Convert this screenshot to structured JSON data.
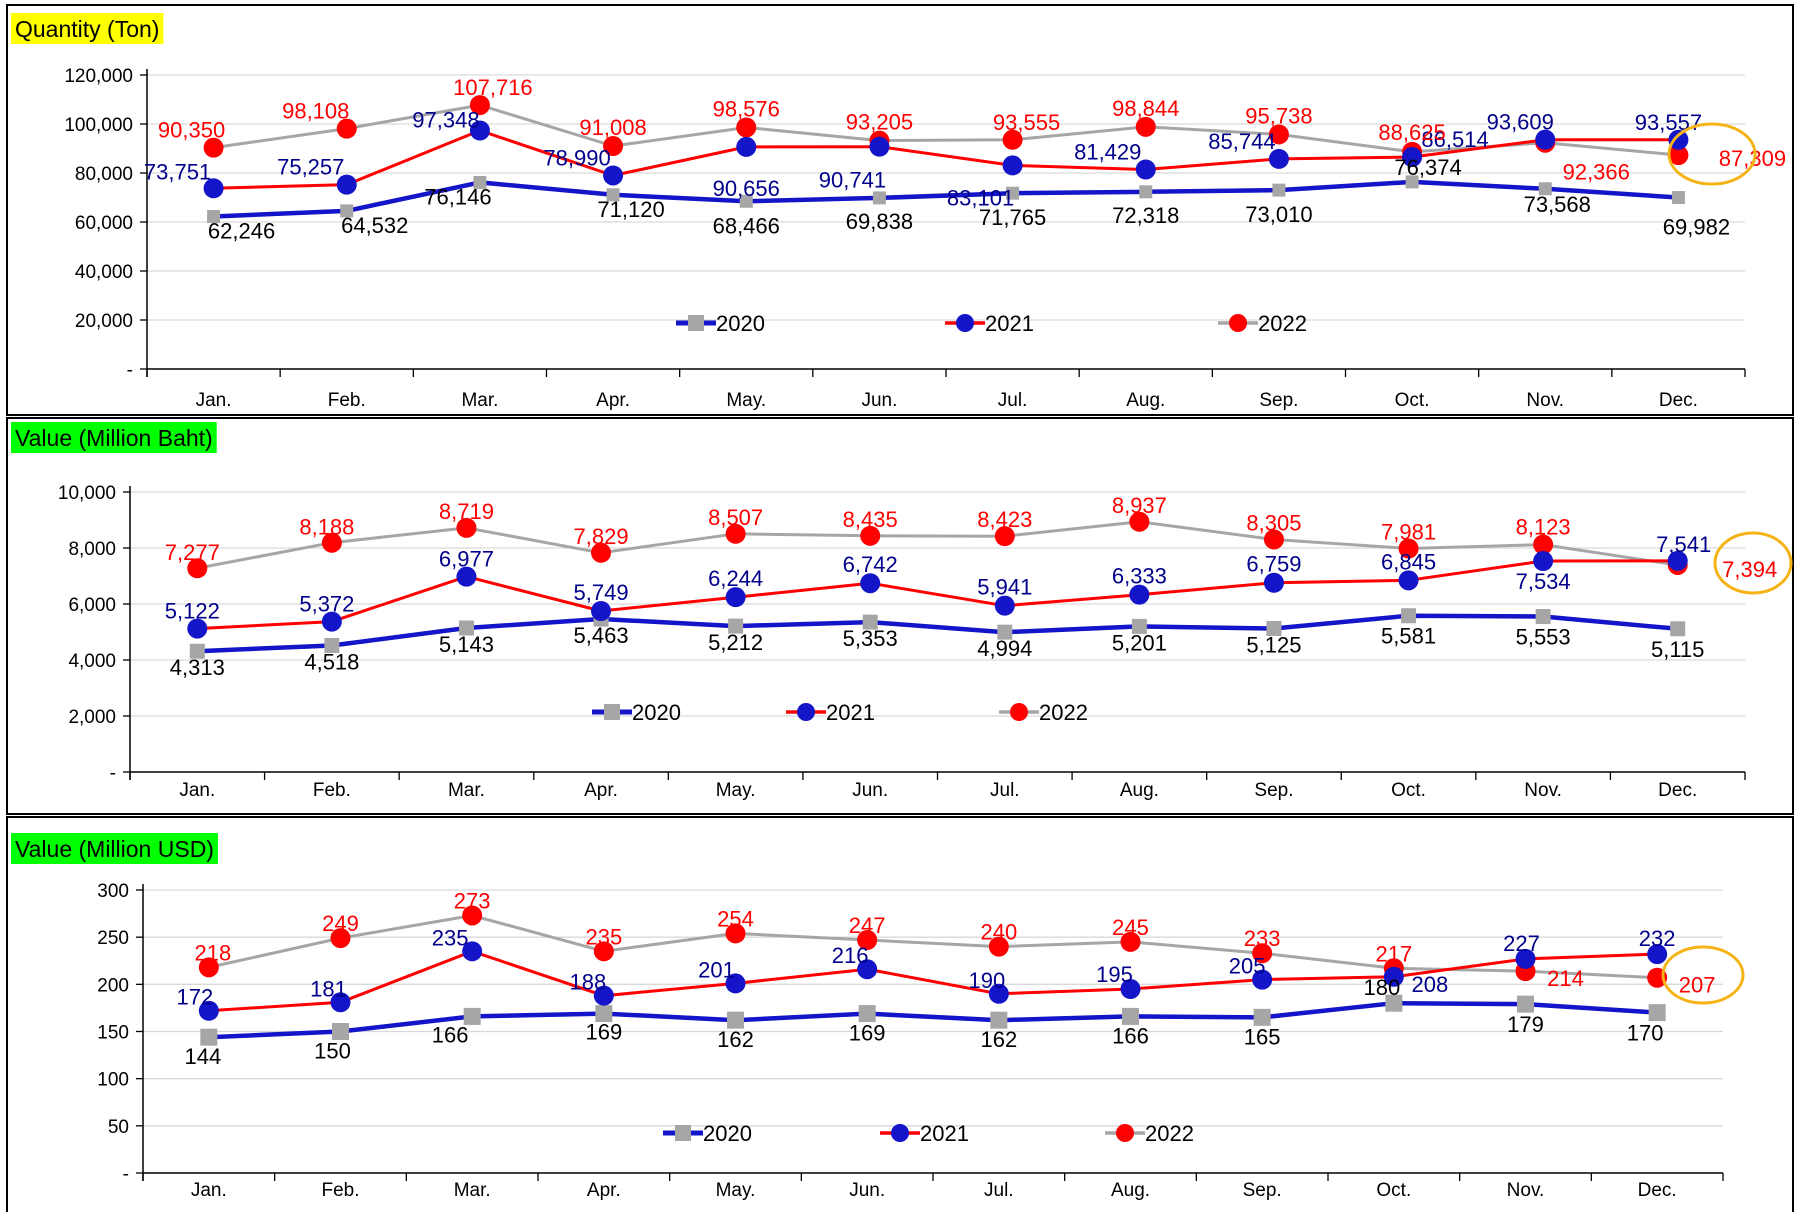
{
  "colors": {
    "series_2020": "#1414c8",
    "series_2021": "#ff0000",
    "series_2022": "#a6a6a6",
    "label_2020": "#000000",
    "label_2021": "#00008b",
    "label_2022": "#ff0000",
    "marker_2020": "#a6a6a6",
    "marker_2021": "#1414c8",
    "marker_2022": "#ff0000",
    "highlight": "#f5b316"
  },
  "chart_data": [
    {
      "type": "line",
      "title": "Quantity (Ton)",
      "title_bg": "#ffff00",
      "categories": [
        "Jan.",
        "Feb.",
        "Mar.",
        "Apr.",
        "May.",
        "Jun.",
        "Jul.",
        "Aug.",
        "Sep.",
        "Oct.",
        "Nov.",
        "Dec."
      ],
      "ylim": [
        0,
        120000
      ],
      "yticks": [
        {
          "value": 0,
          "label": "-"
        },
        {
          "value": 20000,
          "label": "20,000"
        },
        {
          "value": 40000,
          "label": "40,000"
        },
        {
          "value": 60000,
          "label": "60,000"
        },
        {
          "value": 80000,
          "label": "80,000"
        },
        {
          "value": 100000,
          "label": "100,000"
        },
        {
          "value": 120000,
          "label": "120,000"
        }
      ],
      "grid": true,
      "legend": "bottom-center",
      "series": [
        {
          "name": "2020",
          "values": [
            62246,
            64532,
            76146,
            71120,
            68466,
            69838,
            71765,
            72318,
            73010,
            76374,
            73568,
            69982
          ],
          "labels": [
            "62,246",
            "64,532",
            "76,146",
            "71,120",
            "68,466",
            "69,838",
            "71,765",
            "72,318",
            "73,010",
            "76,374",
            "73,568",
            "69,982"
          ]
        },
        {
          "name": "2021",
          "values": [
            73751,
            75257,
            97348,
            78990,
            90656,
            90741,
            83101,
            81429,
            85744,
            86514,
            93609,
            93557
          ],
          "labels": [
            "73,751",
            "75,257",
            "97,348",
            "78,990",
            "90,656",
            "90,741",
            "83,101",
            "81,429",
            "85,744",
            "86,514",
            "93,609",
            "93,557"
          ]
        },
        {
          "name": "2022",
          "values": [
            90350,
            98108,
            107716,
            91008,
            98576,
            93205,
            93555,
            98844,
            95738,
            88625,
            92366,
            87309
          ],
          "labels": [
            "90,350",
            "98,108",
            "107,716",
            "91,008",
            "98,576",
            "93,205",
            "93,555",
            "98,844",
            "95,738",
            "88,625",
            "92,366",
            "87,309"
          ]
        }
      ]
    },
    {
      "type": "line",
      "title": "Value (Million Baht)",
      "title_bg": "#00ff00",
      "categories": [
        "Jan.",
        "Feb.",
        "Mar.",
        "Apr.",
        "May.",
        "Jun.",
        "Jul.",
        "Aug.",
        "Sep.",
        "Oct.",
        "Nov.",
        "Dec."
      ],
      "ylim": [
        0,
        10000
      ],
      "yticks": [
        {
          "value": 0,
          "label": "-"
        },
        {
          "value": 2000,
          "label": "2,000"
        },
        {
          "value": 4000,
          "label": "4,000"
        },
        {
          "value": 6000,
          "label": "6,000"
        },
        {
          "value": 8000,
          "label": "8,000"
        },
        {
          "value": 10000,
          "label": "10,000"
        }
      ],
      "grid": true,
      "legend": "bottom-center",
      "series": [
        {
          "name": "2020",
          "values": [
            4313,
            4518,
            5143,
            5463,
            5212,
            5353,
            4994,
            5201,
            5125,
            5581,
            5553,
            5115
          ],
          "labels": [
            "4,313",
            "4,518",
            "5,143",
            "5,463",
            "5,212",
            "5,353",
            "4,994",
            "5,201",
            "5,125",
            "5,581",
            "5,553",
            "5,115"
          ]
        },
        {
          "name": "2021",
          "values": [
            5122,
            5372,
            6977,
            5749,
            6244,
            6742,
            5941,
            6333,
            6759,
            6845,
            7534,
            7541
          ],
          "labels": [
            "5,122",
            "5,372",
            "6,977",
            "5,749",
            "6,244",
            "6,742",
            "5,941",
            "6,333",
            "6,759",
            "6,845",
            "7,534",
            "7,541"
          ]
        },
        {
          "name": "2022",
          "values": [
            7277,
            8188,
            8719,
            7829,
            8507,
            8435,
            8423,
            8937,
            8305,
            7981,
            8123,
            7394
          ],
          "labels": [
            "7,277",
            "8,188",
            "8,719",
            "7,829",
            "8,507",
            "8,435",
            "8,423",
            "8,937",
            "8,305",
            "7,981",
            "8,123",
            "7,394"
          ]
        }
      ]
    },
    {
      "type": "line",
      "title": "Value (Million USD)",
      "title_bg": "#00ff00",
      "categories": [
        "Jan.",
        "Feb.",
        "Mar.",
        "Apr.",
        "May.",
        "Jun.",
        "Jul.",
        "Aug.",
        "Sep.",
        "Oct.",
        "Nov.",
        "Dec."
      ],
      "ylim": [
        0,
        300
      ],
      "yticks": [
        {
          "value": 0,
          "label": "-"
        },
        {
          "value": 50,
          "label": "50"
        },
        {
          "value": 100,
          "label": "100"
        },
        {
          "value": 150,
          "label": "150"
        },
        {
          "value": 200,
          "label": "200"
        },
        {
          "value": 250,
          "label": "250"
        },
        {
          "value": 300,
          "label": "300"
        }
      ],
      "grid": true,
      "legend": "bottom-center",
      "series": [
        {
          "name": "2020",
          "values": [
            144,
            150,
            166,
            169,
            162,
            169,
            162,
            166,
            165,
            180,
            179,
            170
          ],
          "labels": [
            "144",
            "150",
            "166",
            "169",
            "162",
            "169",
            "162",
            "166",
            "165",
            "180",
            "179",
            "170"
          ]
        },
        {
          "name": "2021",
          "values": [
            172,
            181,
            235,
            188,
            201,
            216,
            190,
            195,
            205,
            208,
            227,
            232
          ],
          "labels": [
            "172",
            "181",
            "235",
            "188",
            "201",
            "216",
            "190",
            "195",
            "205",
            "208",
            "227",
            "232"
          ]
        },
        {
          "name": "2022",
          "values": [
            218,
            249,
            273,
            235,
            254,
            247,
            240,
            245,
            233,
            217,
            214,
            207
          ],
          "labels": [
            "218",
            "249",
            "273",
            "235",
            "254",
            "247",
            "240",
            "245",
            "233",
            "217",
            "214",
            "207"
          ]
        }
      ]
    }
  ]
}
